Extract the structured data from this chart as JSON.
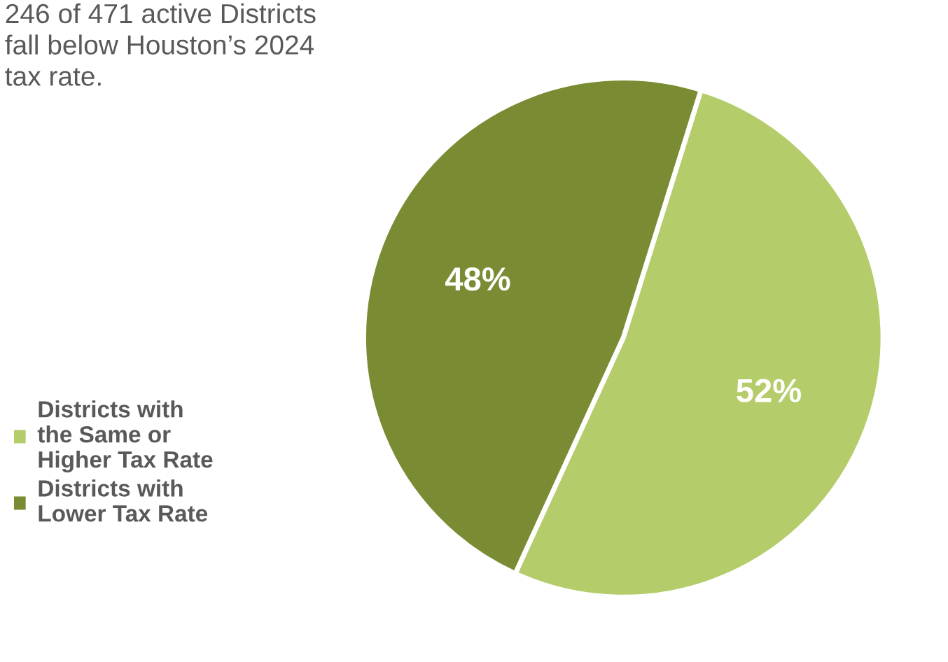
{
  "chart_data": {
    "type": "pie",
    "title": "246 of 471 active Districts fall below Houston’s 2024 tax rate.",
    "categories": [
      "Districts with the Same or Higher Tax Rate",
      "Districts with Lower Tax Rate"
    ],
    "values": [
      52,
      48
    ],
    "colors": [
      "#b5cc6a",
      "#7a8c33"
    ],
    "value_labels": [
      "52%",
      "48%"
    ],
    "legend": "left"
  }
}
